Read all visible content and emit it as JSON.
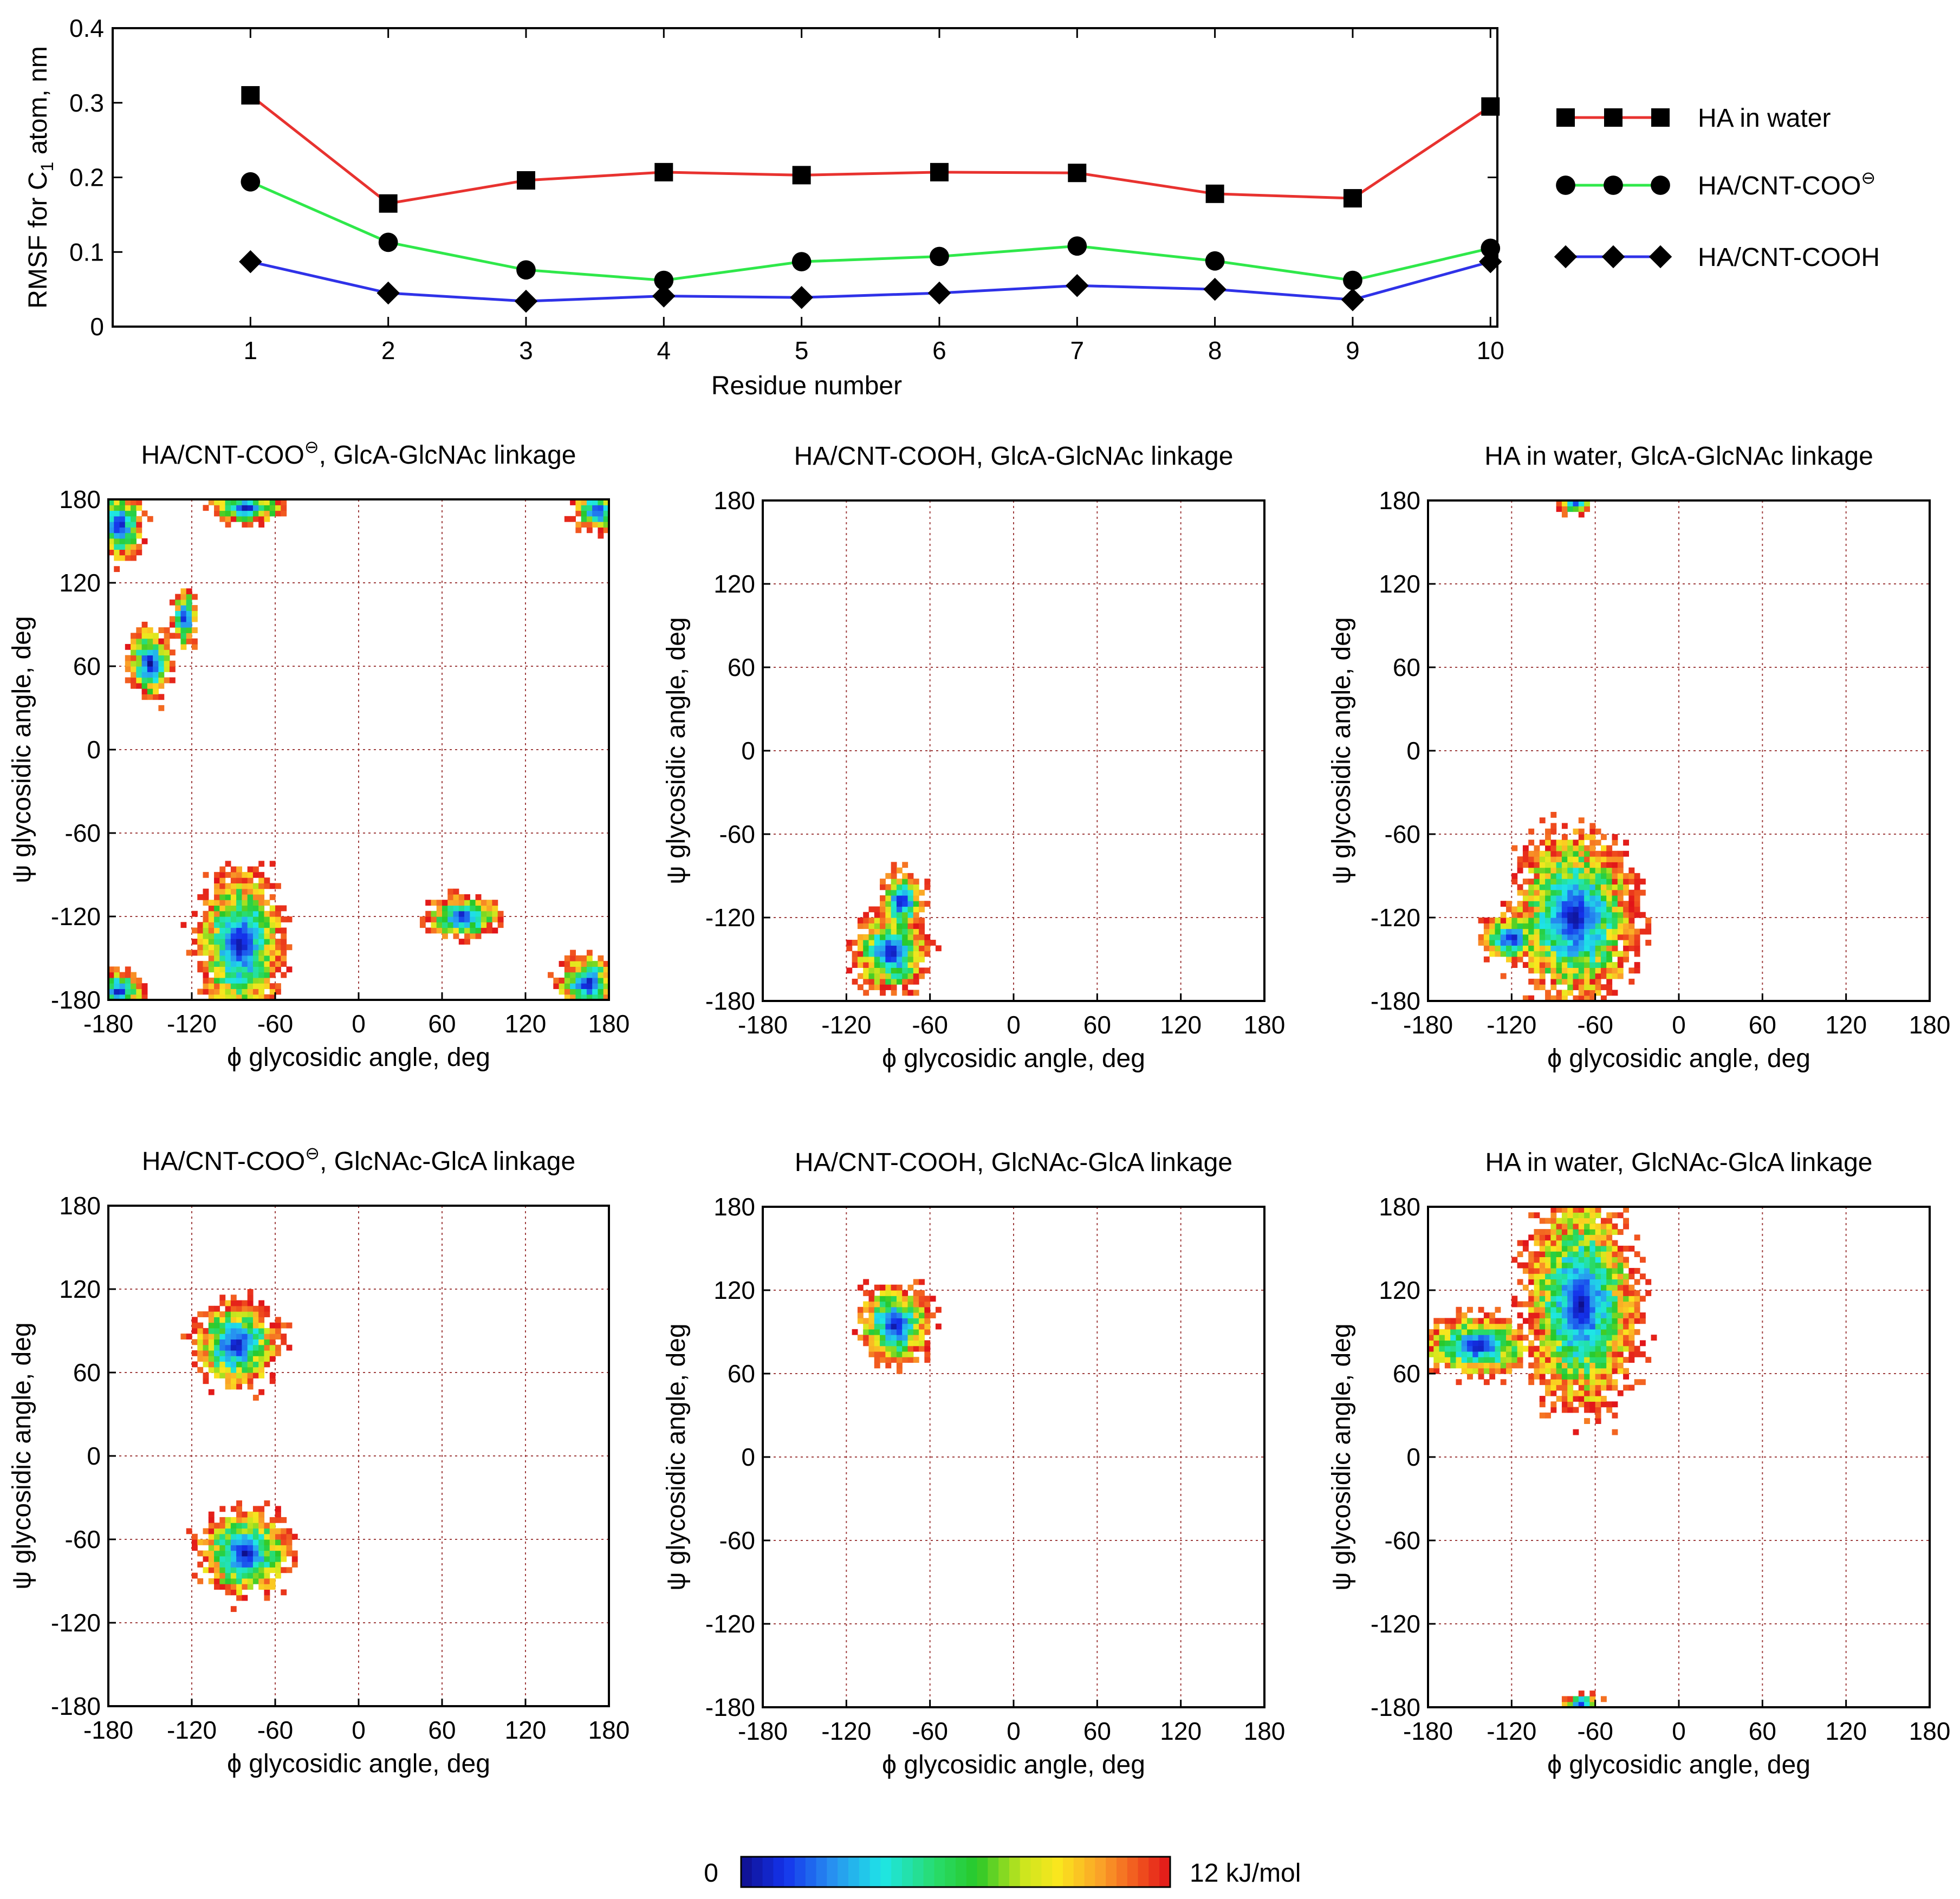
{
  "chart_data": [
    {
      "type": "line",
      "id": "rmsf",
      "xlabel": "Residue number",
      "ylabel_main": "RMSF for C",
      "ylabel_sub": "1",
      "ylabel_rest": " atom, nm",
      "xlim": [
        0,
        10.05
      ],
      "ylim": [
        0,
        0.4
      ],
      "xticks": [
        1,
        2,
        3,
        4,
        5,
        6,
        7,
        8,
        9,
        10
      ],
      "yticks": [
        0,
        0.1,
        0.2,
        0.3,
        0.4
      ],
      "ytick_labels": [
        "0",
        "0.1",
        "0.2",
        "0.3",
        "0.4"
      ],
      "x": [
        1,
        2,
        3,
        4,
        5,
        6,
        7,
        8,
        9,
        10
      ],
      "series": [
        {
          "name": "HA in water",
          "name_suffix": "",
          "marker": "square",
          "color": "#e8322f",
          "values": [
            0.31,
            0.165,
            0.196,
            0.207,
            0.203,
            0.207,
            0.206,
            0.178,
            0.172,
            0.295
          ]
        },
        {
          "name": "HA/CNT-COO",
          "name_suffix": "⊖",
          "marker": "circle",
          "color": "#2fe84a",
          "values": [
            0.194,
            0.113,
            0.076,
            0.062,
            0.087,
            0.094,
            0.108,
            0.088,
            0.062,
            0.105
          ]
        },
        {
          "name": "HA/CNT-COOH",
          "name_suffix": "",
          "marker": "diamond",
          "color": "#2f32e8",
          "values": [
            0.087,
            0.045,
            0.034,
            0.041,
            0.039,
            0.045,
            0.055,
            0.05,
            0.036,
            0.087
          ]
        }
      ]
    },
    {
      "type": "heatmap",
      "colorbar": {
        "min_label": "0",
        "max_label": "12 kJ/mol",
        "min": 0,
        "max": 12
      },
      "xlim": [
        -180,
        180
      ],
      "ylim": [
        -180,
        180
      ],
      "ticks": [
        -180,
        -120,
        -60,
        0,
        60,
        120,
        180
      ],
      "xlabel_symbol": "ϕ",
      "xlabel_text": " glycosidic angle, deg",
      "ylabel_symbol": "ψ",
      "ylabel_text": " glycosidic angle, deg",
      "panels": [
        {
          "title": "HA/CNT-COO",
          "title_sup": "⊖",
          "title_rest": ", GlcA-GlcNAc linkage",
          "clusters": [
            {
              "phi": -85,
              "psi": -140,
              "sphi": 14,
              "spsi": 24
            },
            {
              "phi": -172,
              "psi": 162,
              "sphi": 8,
              "spsi": 12
            },
            {
              "phi": -172,
              "psi": -174,
              "sphi": 8,
              "spsi": 7
            },
            {
              "phi": 172,
              "psi": 172,
              "sphi": 8,
              "spsi": 7
            },
            {
              "phi": 165,
              "psi": -168,
              "sphi": 10,
              "spsi": 9
            },
            {
              "phi": -80,
              "psi": 174,
              "sphi": 12,
              "spsi": 5
            },
            {
              "phi": -150,
              "psi": 62,
              "sphi": 7,
              "spsi": 12
            },
            {
              "phi": 75,
              "psi": -120,
              "sphi": 12,
              "spsi": 7
            },
            {
              "phi": -125,
              "psi": 95,
              "sphi": 4,
              "spsi": 10
            }
          ]
        },
        {
          "title": "HA/CNT-COOH",
          "title_sup": "",
          "title_rest": ", GlcA-GlcNAc linkage",
          "clusters": [
            {
              "phi": -88,
              "psi": -145,
              "sphi": 12,
              "spsi": 13
            },
            {
              "phi": -80,
              "psi": -108,
              "sphi": 7,
              "spsi": 10
            }
          ]
        },
        {
          "title": "HA in water",
          "title_sup": "",
          "title_rest": ", GlcA-GlcNAc linkage",
          "clusters": [
            {
              "phi": -75,
              "psi": -120,
              "sphi": 20,
              "spsi": 28
            },
            {
              "phi": -120,
              "psi": -135,
              "sphi": 10,
              "spsi": 8
            },
            {
              "phi": -75,
              "psi": 177,
              "sphi": 5,
              "spsi": 3
            }
          ]
        },
        {
          "title": "HA/CNT-COO",
          "title_sup": "⊖",
          "title_rest": ", GlcNAc-GlcA linkage",
          "clusters": [
            {
              "phi": -88,
              "psi": 80,
              "sphi": 14,
              "spsi": 14
            },
            {
              "phi": -82,
              "psi": -70,
              "sphi": 15,
              "spsi": 14
            }
          ]
        },
        {
          "title": "HA/CNT-COOH",
          "title_sup": "",
          "title_rest": ", GlcNAc-GlcA linkage",
          "clusters": [
            {
              "phi": -85,
              "psi": 95,
              "sphi": 12,
              "spsi": 13
            }
          ]
        },
        {
          "title": "HA in water",
          "title_sup": "",
          "title_rest": ", GlcNAc-GlcA linkage",
          "clusters": [
            {
              "phi": -70,
              "psi": 110,
              "sphi": 18,
              "spsi": 35
            },
            {
              "phi": -145,
              "psi": 80,
              "sphi": 18,
              "spsi": 10
            },
            {
              "phi": -70,
              "psi": -177,
              "sphi": 6,
              "spsi": 3
            }
          ]
        }
      ]
    }
  ]
}
